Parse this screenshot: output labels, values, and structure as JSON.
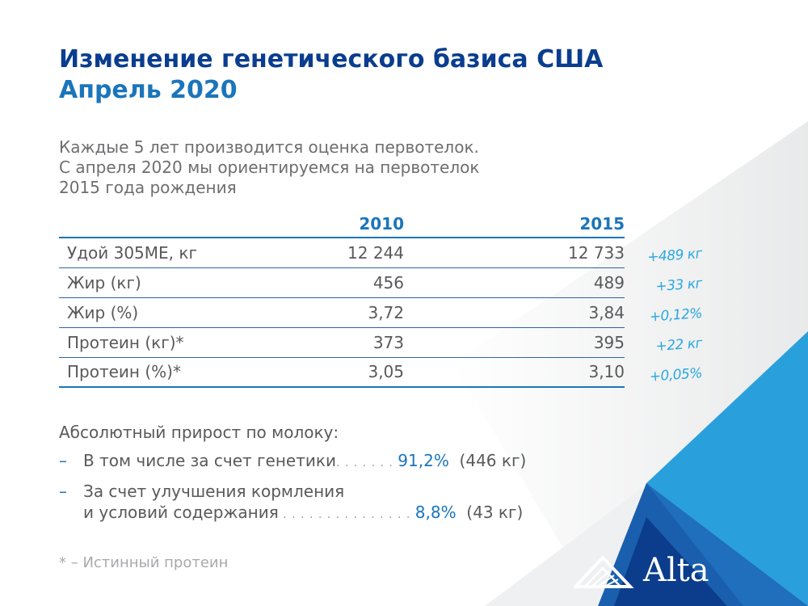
{
  "title": {
    "line1": "Изменение генетического базиса США",
    "line2": "Апрель 2020"
  },
  "intro": [
    "Каждые 5 лет производится оценка первотелок.",
    "С апреля 2020 мы ориентируемся на первотелок",
    "2015 года рождения"
  ],
  "table": {
    "headers": [
      "",
      "2010",
      "2015"
    ],
    "rows": [
      {
        "label": "Удой 305ME, кг",
        "v2010": "12 244",
        "v2015": "12 733",
        "delta": "+489 кг"
      },
      {
        "label": "Жир (кг)",
        "v2010": "456",
        "v2015": "489",
        "delta": "+33 кг"
      },
      {
        "label": "Жир (%)",
        "v2010": "3,72",
        "v2015": "3,84",
        "delta": "+0,12%"
      },
      {
        "label": "Протеин (кг)*",
        "v2010": "373",
        "v2015": "395",
        "delta": "+22 кг"
      },
      {
        "label": "Протеин (%)*",
        "v2010": "3,05",
        "v2015": "3,10",
        "delta": "+0,05%"
      }
    ]
  },
  "growth": {
    "heading": "Абсолютный прирост по молоку:",
    "dash": "–",
    "item1": {
      "text": "В том числе за счет генетики",
      "dots": ". . . . . . . ",
      "pct": "91,2%",
      "amount": "(446 кг)"
    },
    "item2": {
      "line1": "За счет улучшения кормления",
      "line2": "и условий содержания",
      "dots": " . . . . . . . . . . . . . . . ",
      "pct": "8,8%",
      "amount": "(43 кг)"
    }
  },
  "footnote": "* – Истинный протеин",
  "logo": {
    "text": "Alta",
    "icon": "mountain-logo-icon"
  },
  "colors": {
    "navy": "#0a3d8f",
    "blue": "#1b75bb",
    "light_blue": "#29a8e0",
    "text_gray": "#58595b",
    "footnote_gray": "#a7a9ac"
  }
}
